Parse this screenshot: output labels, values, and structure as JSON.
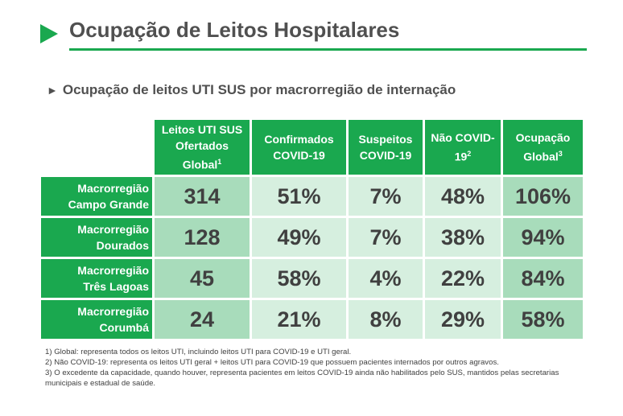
{
  "header": {
    "title": "Ocupação de Leitos Hospitalares",
    "subtitle": "Ocupação de leitos UTI SUS por macrorregião de internação"
  },
  "table": {
    "columns": [
      {
        "label": "Leitos UTI SUS Ofertados Global",
        "sup": "1"
      },
      {
        "label": "Confirmados COVID-19",
        "sup": ""
      },
      {
        "label": "Suspeitos COVID-19",
        "sup": ""
      },
      {
        "label": "Não COVID-19",
        "sup": "2"
      },
      {
        "label": "Ocupação Global",
        "sup": "3"
      }
    ],
    "rows": [
      {
        "line1": "Macrorregião",
        "line2": "Campo Grande",
        "leitos": "314",
        "confirmados": "51%",
        "suspeitos": "7%",
        "nao_covid": "48%",
        "ocupacao": "106%"
      },
      {
        "line1": "Macrorregião",
        "line2": "Dourados",
        "leitos": "128",
        "confirmados": "49%",
        "suspeitos": "7%",
        "nao_covid": "38%",
        "ocupacao": "94%"
      },
      {
        "line1": "Macrorregião",
        "line2": "Três Lagoas",
        "leitos": "45",
        "confirmados": "58%",
        "suspeitos": "4%",
        "nao_covid": "22%",
        "ocupacao": "84%"
      },
      {
        "line1": "Macrorregião",
        "line2": "Corumbá",
        "leitos": "24",
        "confirmados": "21%",
        "suspeitos": "8%",
        "nao_covid": "29%",
        "ocupacao": "58%"
      }
    ]
  },
  "notes": [
    "1) Global: representa todos os leitos UTI, incluindo leitos UTI para COVID-19 e UTI geral.",
    "2) Não COVID-19: representa os leitos UTI geral + leitos UTI para COVID-19 que possuem pacientes internados por outros agravos.",
    "3) O excedente da capacidade, quando houver, representa pacientes em leitos COVID-19 ainda não habilitados pelo SUS, mantidos pelas secretarias municipais e estadual de saúde."
  ],
  "colors": {
    "accent": "#1aa84f",
    "cell_dark": "#a8dcbb",
    "cell_light": "#d6efdf"
  },
  "icons": {
    "title_marker": "triangle-right-icon",
    "subtitle_marker": "triangle-pointer-icon"
  }
}
